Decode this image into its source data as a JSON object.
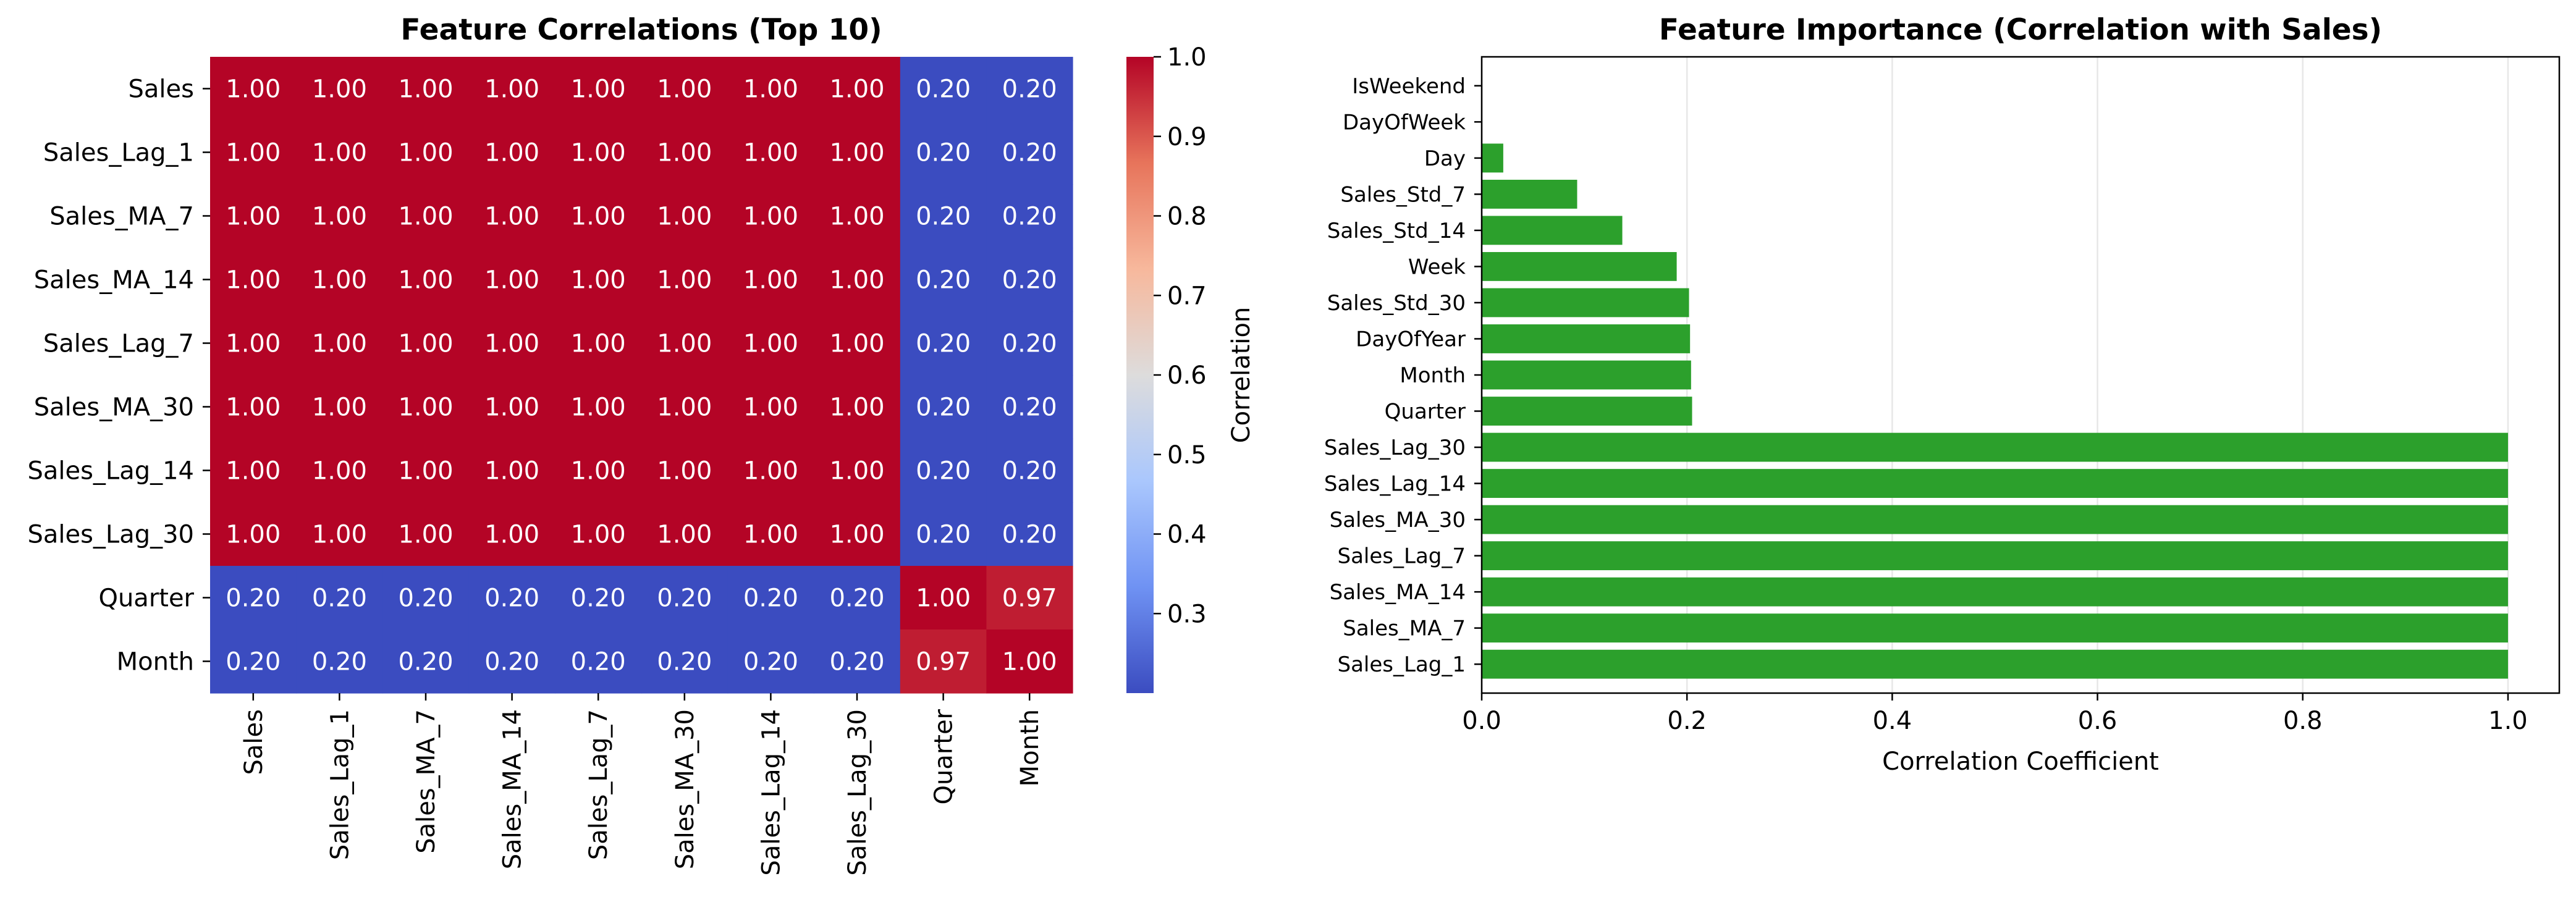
{
  "chart_data": [
    {
      "type": "heatmap",
      "title": "Feature Correlations (Top 10)",
      "rows": [
        "Sales",
        "Sales_Lag_1",
        "Sales_MA_7",
        "Sales_MA_14",
        "Sales_Lag_7",
        "Sales_MA_30",
        "Sales_Lag_14",
        "Sales_Lag_30",
        "Quarter",
        "Month"
      ],
      "columns": [
        "Sales",
        "Sales_Lag_1",
        "Sales_MA_7",
        "Sales_MA_14",
        "Sales_Lag_7",
        "Sales_MA_30",
        "Sales_Lag_14",
        "Sales_Lag_30",
        "Quarter",
        "Month"
      ],
      "values": [
        [
          1.0,
          1.0,
          1.0,
          1.0,
          1.0,
          1.0,
          1.0,
          1.0,
          0.2,
          0.2
        ],
        [
          1.0,
          1.0,
          1.0,
          1.0,
          1.0,
          1.0,
          1.0,
          1.0,
          0.2,
          0.2
        ],
        [
          1.0,
          1.0,
          1.0,
          1.0,
          1.0,
          1.0,
          1.0,
          1.0,
          0.2,
          0.2
        ],
        [
          1.0,
          1.0,
          1.0,
          1.0,
          1.0,
          1.0,
          1.0,
          1.0,
          0.2,
          0.2
        ],
        [
          1.0,
          1.0,
          1.0,
          1.0,
          1.0,
          1.0,
          1.0,
          1.0,
          0.2,
          0.2
        ],
        [
          1.0,
          1.0,
          1.0,
          1.0,
          1.0,
          1.0,
          1.0,
          1.0,
          0.2,
          0.2
        ],
        [
          1.0,
          1.0,
          1.0,
          1.0,
          1.0,
          1.0,
          1.0,
          1.0,
          0.2,
          0.2
        ],
        [
          1.0,
          1.0,
          1.0,
          1.0,
          1.0,
          1.0,
          1.0,
          1.0,
          0.2,
          0.2
        ],
        [
          0.2,
          0.2,
          0.2,
          0.2,
          0.2,
          0.2,
          0.2,
          0.2,
          1.0,
          0.97
        ],
        [
          0.2,
          0.2,
          0.2,
          0.2,
          0.2,
          0.2,
          0.2,
          0.2,
          0.97,
          1.0
        ]
      ],
      "colorbar": {
        "label": "Correlation",
        "range": [
          0.2,
          1.0
        ],
        "ticks": [
          0.3,
          0.4,
          0.5,
          0.6,
          0.7,
          0.8,
          0.9,
          1.0
        ],
        "colormap": "coolwarm",
        "colors": [
          "#3b4cc0",
          "#6f92f3",
          "#aac7fd",
          "#dddcdc",
          "#f7b89c",
          "#e7745b",
          "#b40426"
        ]
      },
      "annotation_color": "#ffffff"
    },
    {
      "type": "bar",
      "orientation": "horizontal",
      "title": "Feature Importance (Correlation with Sales)",
      "xlabel": "Correlation Coefficient",
      "ylabel": "",
      "categories": [
        "Sales_Lag_1",
        "Sales_MA_7",
        "Sales_MA_14",
        "Sales_Lag_7",
        "Sales_MA_30",
        "Sales_Lag_14",
        "Sales_Lag_30",
        "Quarter",
        "Month",
        "DayOfYear",
        "Sales_Std_30",
        "Week",
        "Sales_Std_14",
        "Sales_Std_7",
        "Day",
        "DayOfWeek",
        "IsWeekend"
      ],
      "values": [
        1.0,
        1.0,
        1.0,
        1.0,
        1.0,
        1.0,
        1.0,
        0.205,
        0.204,
        0.203,
        0.202,
        0.19,
        0.137,
        0.093,
        0.021,
        0.0,
        0.0
      ],
      "xlim": [
        0,
        1.05
      ],
      "xticks": [
        0.0,
        0.2,
        0.4,
        0.6,
        0.8,
        1.0
      ],
      "grid": "x",
      "bar_color": "#2ca02c"
    }
  ]
}
